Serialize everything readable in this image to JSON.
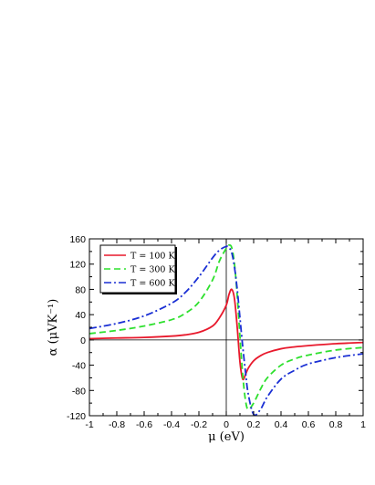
{
  "chart_data": {
    "type": "line",
    "title": "",
    "xlabel": "μ (eV)",
    "ylabel": "α (μVK⁻¹)",
    "xlim": [
      -1,
      1
    ],
    "ylim": [
      -120,
      160
    ],
    "xticks": [
      -1,
      -0.8,
      -0.6,
      -0.4,
      -0.2,
      0,
      0.2,
      0.4,
      0.6,
      0.8,
      1
    ],
    "xtick_labels": [
      "-1",
      "-0.8",
      "-0.6",
      "-0.4",
      "-0.2",
      "0",
      "0.2",
      "0.4",
      "0.6",
      "0.8",
      "1"
    ],
    "yticks": [
      -120,
      -80,
      -40,
      0,
      40,
      80,
      120,
      160
    ],
    "ytick_labels": [
      "-120",
      "-80",
      "-40",
      "0",
      "40",
      "80",
      "120",
      "160"
    ],
    "grid": false,
    "legend_position": "top-left",
    "series": [
      {
        "name": "T = 100 K",
        "color": "#e8192c",
        "dash": "solid",
        "x": [
          -1,
          -0.8,
          -0.6,
          -0.4,
          -0.3,
          -0.2,
          -0.1,
          -0.05,
          0,
          0.02,
          0.04,
          0.06,
          0.08,
          0.1,
          0.12,
          0.14,
          0.16,
          0.2,
          0.25,
          0.3,
          0.4,
          0.5,
          0.6,
          0.8,
          1
        ],
        "y": [
          2,
          3,
          4,
          6,
          8,
          12,
          22,
          35,
          55,
          72,
          80,
          65,
          20,
          -35,
          -62,
          -55,
          -45,
          -33,
          -25,
          -20,
          -14,
          -11,
          -9,
          -6,
          -4
        ]
      },
      {
        "name": "T = 300 K",
        "color": "#2ee02e",
        "dash": "dashed",
        "x": [
          -1,
          -0.8,
          -0.6,
          -0.4,
          -0.3,
          -0.2,
          -0.1,
          -0.05,
          0,
          0.02,
          0.04,
          0.06,
          0.08,
          0.1,
          0.12,
          0.14,
          0.16,
          0.2,
          0.25,
          0.3,
          0.4,
          0.5,
          0.6,
          0.8,
          1
        ],
        "y": [
          10,
          15,
          22,
          32,
          42,
          60,
          95,
          125,
          145,
          150,
          146,
          120,
          70,
          5,
          -55,
          -95,
          -110,
          -100,
          -78,
          -60,
          -40,
          -30,
          -24,
          -16,
          -12
        ]
      },
      {
        "name": "T = 600 K",
        "color": "#1a2fd4",
        "dash": "dashdot",
        "x": [
          -1,
          -0.8,
          -0.6,
          -0.4,
          -0.3,
          -0.2,
          -0.1,
          -0.05,
          0,
          0.02,
          0.04,
          0.06,
          0.08,
          0.1,
          0.12,
          0.14,
          0.16,
          0.2,
          0.25,
          0.3,
          0.4,
          0.5,
          0.6,
          0.8,
          1
        ],
        "y": [
          18,
          26,
          38,
          58,
          75,
          100,
          130,
          142,
          148,
          146,
          138,
          115,
          80,
          35,
          -10,
          -50,
          -85,
          -118,
          -110,
          -90,
          -62,
          -48,
          -38,
          -28,
          -22
        ]
      }
    ]
  }
}
